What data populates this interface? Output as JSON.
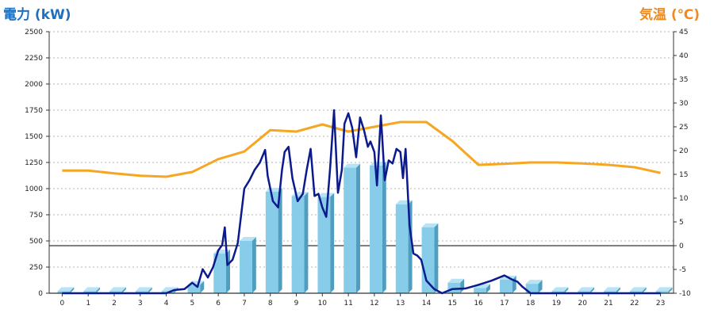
{
  "chart_data": {
    "type": "bar+line",
    "left_axis_title": "電力 (kW)",
    "right_axis_title": "気温 (℃)",
    "x_categories": [
      "0",
      "1",
      "2",
      "3",
      "4",
      "5",
      "6",
      "7",
      "8",
      "9",
      "10",
      "11",
      "12",
      "13",
      "14",
      "15",
      "16",
      "17",
      "18",
      "19",
      "20",
      "21",
      "22",
      "23"
    ],
    "left_ylim": [
      0,
      2500
    ],
    "left_ticks": [
      0,
      250,
      500,
      750,
      1000,
      1250,
      1500,
      1750,
      2000,
      2250,
      2500
    ],
    "right_ylim": [
      -10,
      45
    ],
    "right_ticks": [
      -10,
      -5,
      0,
      5,
      10,
      15,
      20,
      25,
      30,
      35,
      40,
      45
    ],
    "grid": "horizontal dotted",
    "bar_series": {
      "values": [
        20,
        20,
        20,
        20,
        20,
        80,
        380,
        500,
        970,
        930,
        920,
        1200,
        1220,
        850,
        630,
        100,
        50,
        130,
        90,
        20,
        20,
        20,
        20,
        20
      ],
      "color": "#87cdea"
    },
    "power_line": {
      "color": "#0b1a8c",
      "points": [
        [
          0,
          0
        ],
        [
          1,
          0
        ],
        [
          2,
          0
        ],
        [
          3,
          0
        ],
        [
          4,
          0
        ],
        [
          4.3,
          30
        ],
        [
          4.7,
          40
        ],
        [
          5,
          100
        ],
        [
          5.2,
          60
        ],
        [
          5.4,
          230
        ],
        [
          5.6,
          150
        ],
        [
          5.8,
          250
        ],
        [
          6,
          410
        ],
        [
          6.15,
          460
        ],
        [
          6.25,
          630
        ],
        [
          6.35,
          270
        ],
        [
          6.55,
          320
        ],
        [
          6.75,
          480
        ],
        [
          7,
          1000
        ],
        [
          7.2,
          1080
        ],
        [
          7.4,
          1180
        ],
        [
          7.6,
          1250
        ],
        [
          7.8,
          1370
        ],
        [
          7.9,
          1120
        ],
        [
          8.1,
          880
        ],
        [
          8.3,
          820
        ],
        [
          8.45,
          1180
        ],
        [
          8.55,
          1350
        ],
        [
          8.7,
          1400
        ],
        [
          8.85,
          1100
        ],
        [
          9.05,
          880
        ],
        [
          9.25,
          950
        ],
        [
          9.4,
          1180
        ],
        [
          9.55,
          1380
        ],
        [
          9.7,
          930
        ],
        [
          9.85,
          950
        ],
        [
          10,
          820
        ],
        [
          10.15,
          730
        ],
        [
          10.3,
          1200
        ],
        [
          10.45,
          1750
        ],
        [
          10.6,
          960
        ],
        [
          10.75,
          1180
        ],
        [
          10.85,
          1620
        ],
        [
          11,
          1720
        ],
        [
          11.15,
          1580
        ],
        [
          11.3,
          1300
        ],
        [
          11.45,
          1680
        ],
        [
          11.6,
          1560
        ],
        [
          11.75,
          1400
        ],
        [
          11.85,
          1450
        ],
        [
          12,
          1350
        ],
        [
          12.1,
          1030
        ],
        [
          12.25,
          1700
        ],
        [
          12.4,
          1080
        ],
        [
          12.55,
          1270
        ],
        [
          12.7,
          1240
        ],
        [
          12.85,
          1380
        ],
        [
          13,
          1350
        ],
        [
          13.1,
          1100
        ],
        [
          13.2,
          1380
        ],
        [
          13.35,
          650
        ],
        [
          13.5,
          380
        ],
        [
          13.65,
          360
        ],
        [
          13.8,
          320
        ],
        [
          14,
          120
        ],
        [
          14.3,
          40
        ],
        [
          14.6,
          0
        ],
        [
          15,
          40
        ],
        [
          15.5,
          45
        ],
        [
          16,
          80
        ],
        [
          16.5,
          120
        ],
        [
          17,
          170
        ],
        [
          17.3,
          130
        ],
        [
          17.5,
          110
        ],
        [
          17.7,
          60
        ],
        [
          18,
          0
        ],
        [
          19,
          0
        ],
        [
          20,
          0
        ],
        [
          21,
          0
        ],
        [
          22,
          0
        ],
        [
          23,
          0
        ]
      ],
      "axis": "left"
    },
    "temperature_line": {
      "color": "#f5a623",
      "values": [
        15.8,
        15.8,
        15.2,
        14.7,
        14.5,
        15.5,
        18.2,
        19.8,
        24.3,
        24.0,
        25.5,
        24.0,
        25.0,
        26.0,
        26.0,
        22.0,
        17.0,
        17.2,
        17.5,
        17.5,
        17.3,
        17.0,
        16.5,
        15.3
      ],
      "axis": "right"
    }
  }
}
